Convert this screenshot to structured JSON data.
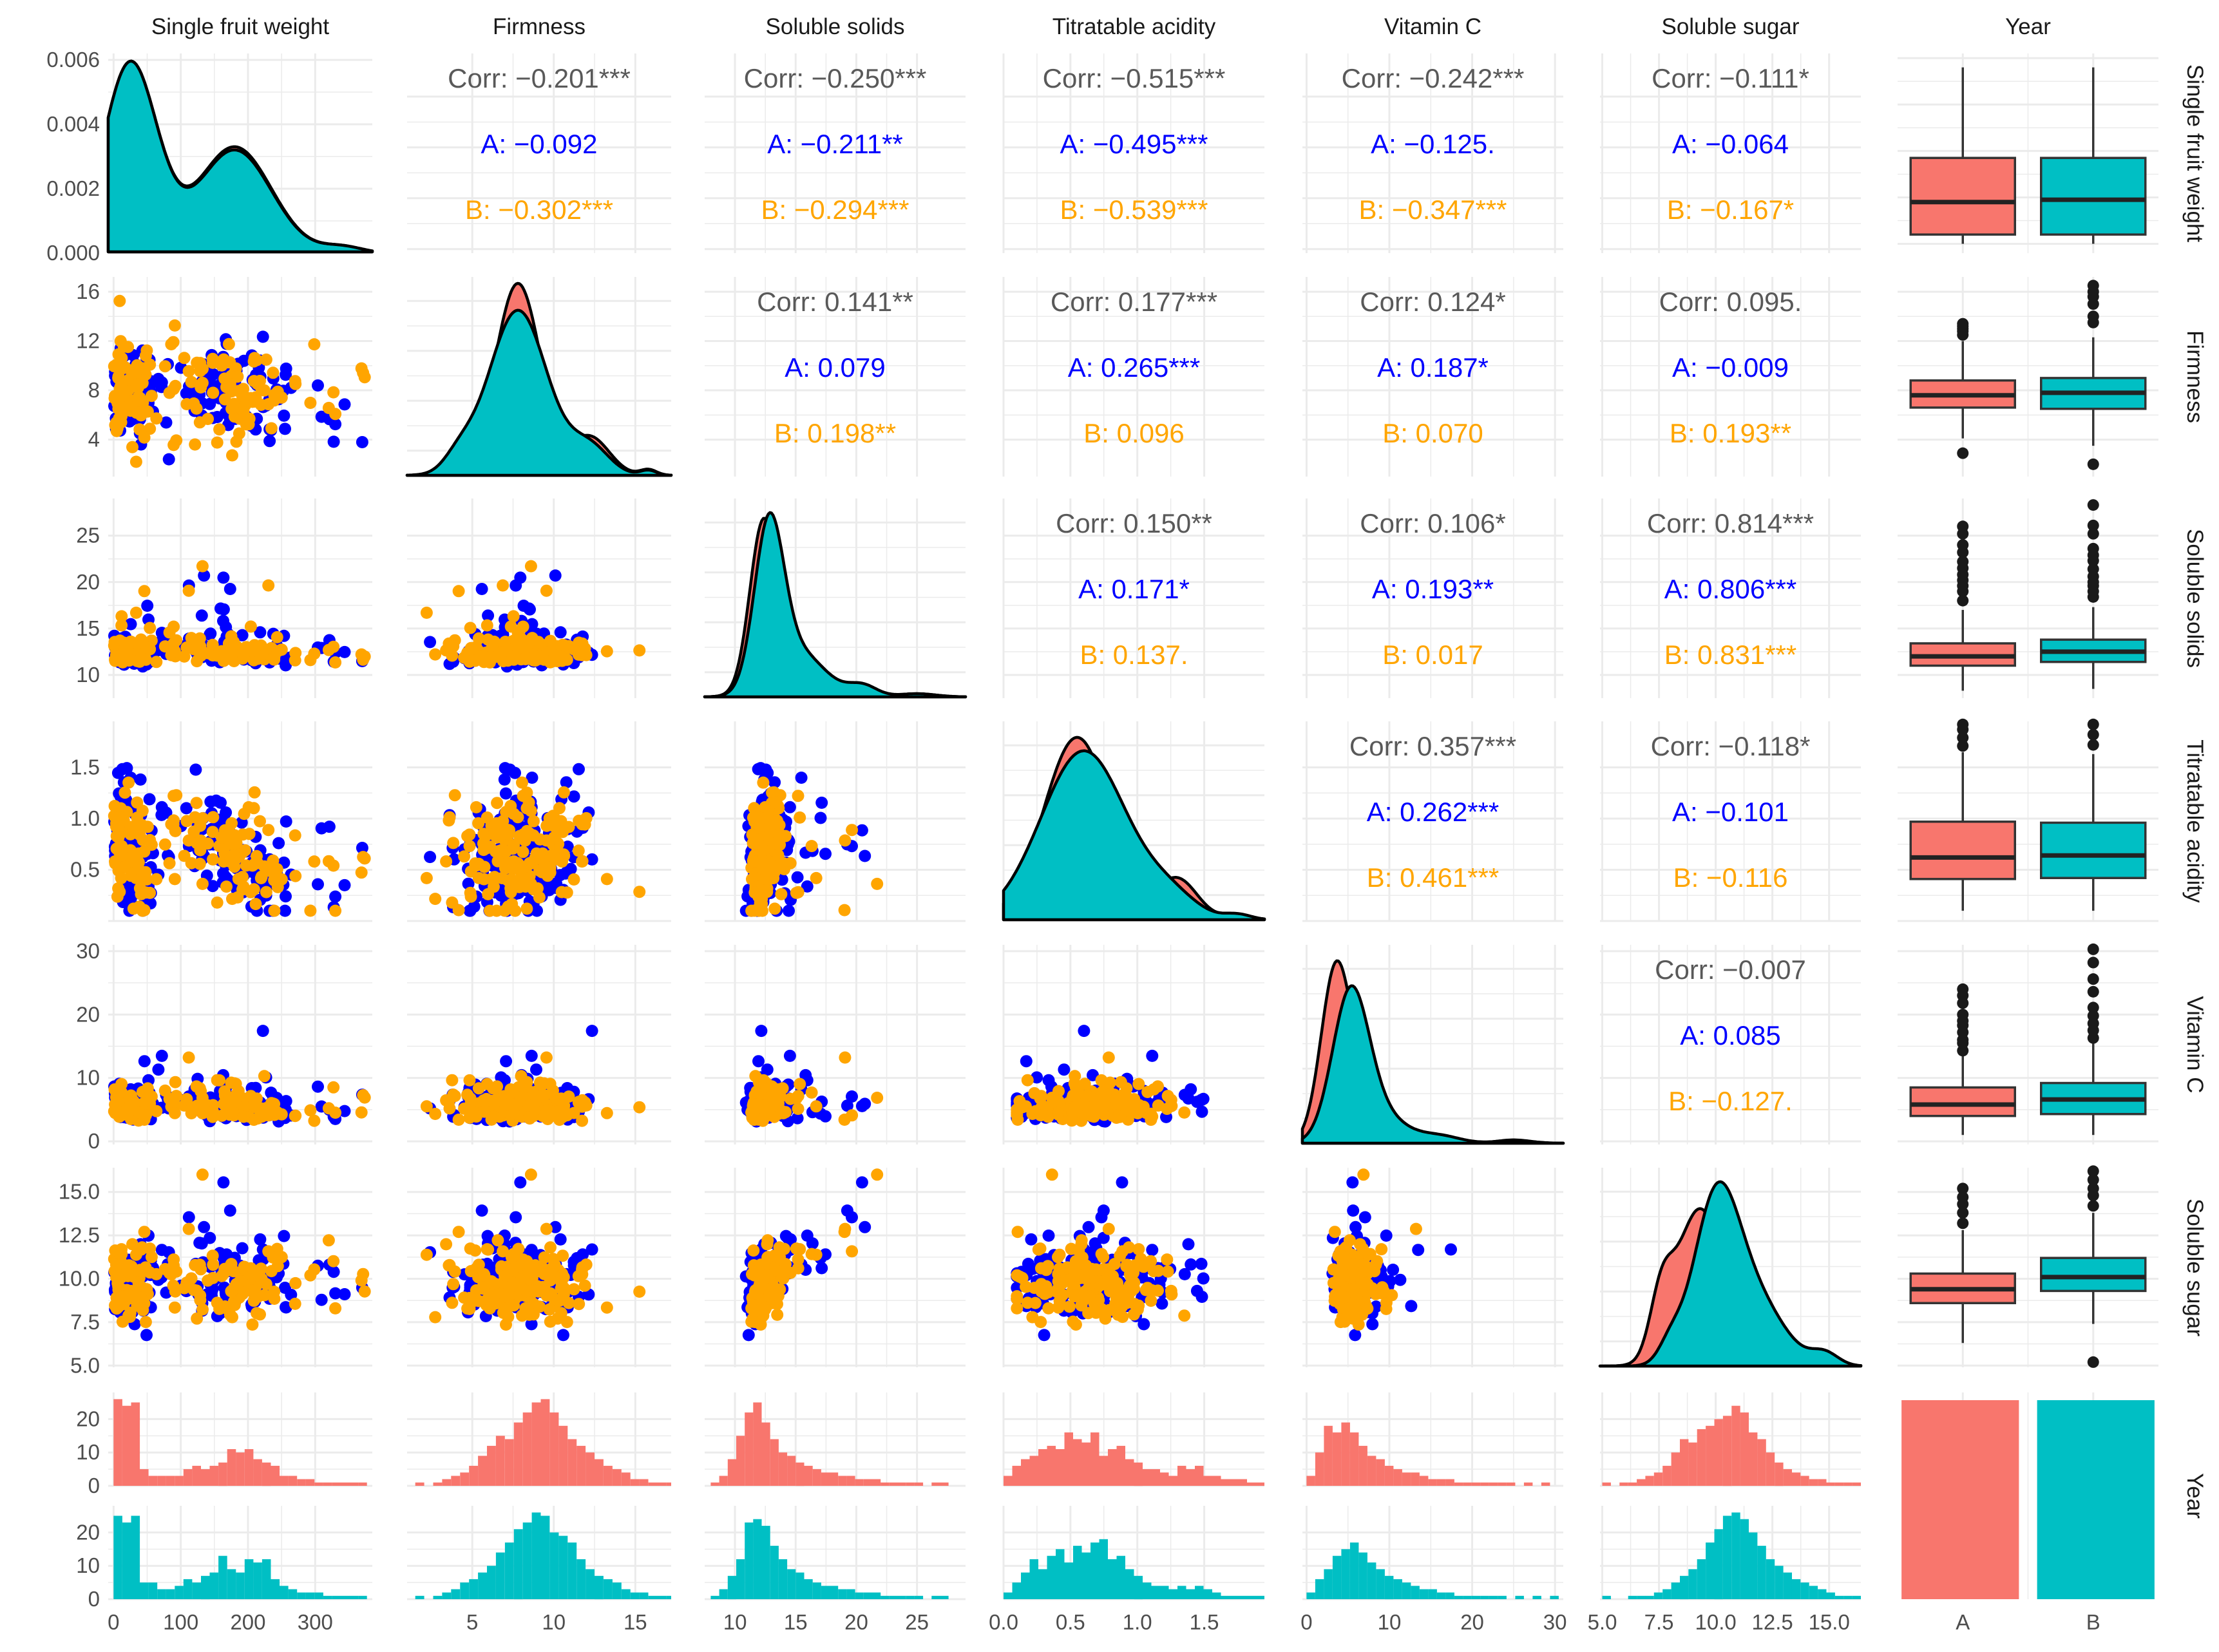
{
  "chart_data": {
    "type": "scatter-matrix",
    "title": "",
    "variables": [
      "Single fruit weight",
      "Firmness",
      "Soluble solids",
      "Titratable acidity",
      "Vitamin C",
      "Soluble sugar"
    ],
    "group_variable": "Year",
    "groups": [
      "A",
      "B"
    ],
    "colors": {
      "panel_bg": "#ffffff",
      "grid": "#ebebeb",
      "corr_text": "#595959",
      "A_text": "#0000ff",
      "B_text": "#ffa500",
      "A_fill": "#f8766d",
      "B_fill": "#00bfc4",
      "scatter_A": "#0000ff",
      "scatter_B": "#ffa500",
      "outline": "#000000"
    },
    "axes": [
      {
        "lim": [
          -8,
          385
        ],
        "ticks": [
          0,
          100,
          200,
          300
        ],
        "tick_labels": [
          "0",
          "100",
          "200",
          "300"
        ],
        "density_lim": [
          0,
          0.0062
        ],
        "density_ticks": [
          0,
          0.002,
          0.004,
          0.006
        ],
        "density_tick_labels": [
          "0.000",
          "0.002",
          "0.004",
          "0.006"
        ]
      },
      {
        "lim": [
          1.0,
          17.2
        ],
        "ticks": [
          4,
          8,
          12,
          16
        ],
        "tick_labels": [
          "4",
          "8",
          "12",
          "16"
        ],
        "x_ticks": [
          5,
          10,
          15
        ],
        "x_tick_labels": [
          "5",
          "10",
          "15"
        ]
      },
      {
        "lim": [
          7.5,
          29.0
        ],
        "ticks": [
          10,
          15,
          20,
          25
        ],
        "tick_labels": [
          "10",
          "15",
          "20",
          "25"
        ]
      },
      {
        "lim": [
          0.0,
          1.95
        ],
        "ticks": [
          0.5,
          1.0,
          1.5
        ],
        "tick_labels": [
          "0.5",
          "1.0",
          "1.5"
        ],
        "x_ticks": [
          0.0,
          0.5,
          1.0,
          1.5
        ],
        "x_tick_labels": [
          "0.0",
          "0.5",
          "1.0",
          "1.5"
        ]
      },
      {
        "lim": [
          -0.5,
          31.0
        ],
        "ticks": [
          0,
          10,
          20,
          30
        ],
        "tick_labels": [
          "0",
          "10",
          "20",
          "30"
        ]
      },
      {
        "lim": [
          4.9,
          16.4
        ],
        "ticks": [
          5.0,
          7.5,
          10.0,
          12.5,
          15.0
        ],
        "tick_labels": [
          "5.0",
          "7.5",
          "10.0",
          "12.5",
          "15.0"
        ]
      }
    ],
    "correlations": [
      {
        "i": 0,
        "j": 1,
        "corr": "Corr: −0.201***",
        "A": "A: −0.092",
        "B": "B: −0.302***"
      },
      {
        "i": 0,
        "j": 2,
        "corr": "Corr: −0.250***",
        "A": "A: −0.211**",
        "B": "B: −0.294***"
      },
      {
        "i": 0,
        "j": 3,
        "corr": "Corr: −0.515***",
        "A": "A: −0.495***",
        "B": "B: −0.539***"
      },
      {
        "i": 0,
        "j": 4,
        "corr": "Corr: −0.242***",
        "A": "A: −0.125.",
        "B": "B: −0.347***"
      },
      {
        "i": 0,
        "j": 5,
        "corr": "Corr: −0.111*",
        "A": "A: −0.064",
        "B": "B: −0.167*"
      },
      {
        "i": 1,
        "j": 2,
        "corr": "Corr: 0.141**",
        "A": "A: 0.079",
        "B": "B: 0.198**"
      },
      {
        "i": 1,
        "j": 3,
        "corr": "Corr: 0.177***",
        "A": "A: 0.265***",
        "B": "B: 0.096"
      },
      {
        "i": 1,
        "j": 4,
        "corr": "Corr: 0.124*",
        "A": "A: 0.187*",
        "B": "B: 0.070"
      },
      {
        "i": 1,
        "j": 5,
        "corr": "Corr: 0.095.",
        "A": "A: −0.009",
        "B": "B: 0.193**"
      },
      {
        "i": 2,
        "j": 3,
        "corr": "Corr: 0.150**",
        "A": "A: 0.171*",
        "B": "B: 0.137."
      },
      {
        "i": 2,
        "j": 4,
        "corr": "Corr: 0.106*",
        "A": "A: 0.193**",
        "B": "B: 0.017"
      },
      {
        "i": 2,
        "j": 5,
        "corr": "Corr: 0.814***",
        "A": "A: 0.806***",
        "B": "B: 0.831***"
      },
      {
        "i": 3,
        "j": 4,
        "corr": "Corr: 0.357***",
        "A": "A: 0.262***",
        "B": "B: 0.461***"
      },
      {
        "i": 3,
        "j": 5,
        "corr": "Corr: −0.118*",
        "A": "A: −0.101",
        "B": "B: −0.116"
      },
      {
        "i": 4,
        "j": 5,
        "corr": "Corr: −0.007",
        "A": "A: 0.085",
        "B": "B: −0.127."
      }
    ],
    "densities": [
      {
        "var": "Single fruit weight",
        "A": {
          "modes": [
            [
              25,
              40,
              0.0059
            ],
            [
              180,
              55,
              0.0033
            ],
            [
              340,
              30,
              0.0002
            ]
          ]
        },
        "B": {
          "modes": [
            [
              25,
              40,
              0.0059
            ],
            [
              180,
              55,
              0.0032
            ],
            [
              340,
              30,
              0.0002
            ]
          ]
        }
      },
      {
        "var": "Firmness",
        "A": {
          "modes": [
            [
              7.8,
              1.4,
              1.0
            ],
            [
              4.2,
              0.8,
              0.12
            ],
            [
              12.2,
              1.2,
              0.2
            ],
            [
              15.8,
              0.5,
              0.03
            ]
          ],
          "peak_frac": 1.0
        },
        "B": {
          "modes": [
            [
              7.8,
              1.8,
              1.0
            ],
            [
              4.2,
              0.9,
              0.1
            ],
            [
              12.2,
              1.2,
              0.17
            ],
            [
              15.8,
              0.5,
              0.03
            ]
          ],
          "peak_frac": 0.86
        }
      },
      {
        "var": "Soluble solids",
        "A": {
          "modes": [
            [
              12.3,
              1.1,
              1.0
            ],
            [
              14.8,
              2.0,
              0.3
            ],
            [
              20.5,
              1.2,
              0.06
            ],
            [
              25,
              1.5,
              0.02
            ]
          ],
          "peak_frac": 0.93
        },
        "B": {
          "modes": [
            [
              12.8,
              1.2,
              1.0
            ],
            [
              15.2,
              2.2,
              0.28
            ],
            [
              20.5,
              1.2,
              0.07
            ],
            [
              25,
              1.5,
              0.02
            ]
          ],
          "peak_frac": 0.96
        }
      },
      {
        "var": "Titratable acidity",
        "A": {
          "modes": [
            [
              0.55,
              0.25,
              1.0
            ],
            [
              1.3,
              0.15,
              0.22
            ],
            [
              1.75,
              0.1,
              0.03
            ]
          ],
          "peak_frac": 0.95
        },
        "B": {
          "modes": [
            [
              0.6,
              0.32,
              1.0
            ],
            [
              1.25,
              0.2,
              0.12
            ],
            [
              1.75,
              0.1,
              0.03
            ]
          ],
          "peak_frac": 0.88
        }
      },
      {
        "var": "Vitamin C",
        "A": {
          "modes": [
            [
              3.5,
              1.8,
              1.0
            ],
            [
              7,
              2.5,
              0.3
            ],
            [
              15,
              2.0,
              0.05
            ],
            [
              25,
              2,
              0.02
            ]
          ],
          "peak_frac": 0.95
        },
        "B": {
          "modes": [
            [
              5.3,
              2.2,
              1.0
            ],
            [
              9,
              3,
              0.18
            ],
            [
              16,
              2.5,
              0.05
            ],
            [
              25,
              2,
              0.02
            ]
          ],
          "peak_frac": 0.82
        }
      },
      {
        "var": "Soluble sugar",
        "A": {
          "modes": [
            [
              9.2,
              1.0,
              1.0
            ],
            [
              7.6,
              0.5,
              0.4
            ],
            [
              11.5,
              1.5,
              0.35
            ],
            [
              14.5,
              0.6,
              0.06
            ]
          ],
          "peak_frac": 0.82
        },
        "B": {
          "modes": [
            [
              10.0,
              1.0,
              1.0
            ],
            [
              8.0,
              0.5,
              0.12
            ],
            [
              11.7,
              1.3,
              0.42
            ],
            [
              14.8,
              0.6,
              0.08
            ]
          ],
          "peak_frac": 0.96
        }
      }
    ],
    "boxplots": [
      {
        "var": "Single fruit weight",
        "A": {
          "lower": 0,
          "q1": 20,
          "median": 90,
          "q3": 185,
          "upper": 380,
          "outliers": []
        },
        "B": {
          "lower": 0,
          "q1": 20,
          "median": 95,
          "q3": 185,
          "upper": 380,
          "outliers": []
        }
      },
      {
        "var": "Firmness",
        "A": {
          "lower": 4.1,
          "q1": 6.6,
          "median": 7.6,
          "q3": 8.8,
          "upper": 12.0,
          "outliers": [
            2.9,
            12.5,
            12.8,
            13.0,
            13.2,
            13.4
          ]
        },
        "B": {
          "lower": 3.5,
          "q1": 6.5,
          "median": 7.8,
          "q3": 9.0,
          "upper": 12.3,
          "outliers": [
            2.0,
            13.5,
            14.0,
            15.0,
            15.6,
            16.0,
            16.5
          ]
        }
      },
      {
        "var": "Soluble solids",
        "A": {
          "lower": 8.3,
          "q1": 11.0,
          "median": 12.0,
          "q3": 13.4,
          "upper": 17.0,
          "outliers": [
            18.0,
            19.0,
            19.6,
            20.2,
            20.8,
            21.5,
            22.2,
            23.2,
            24.0,
            25.2,
            26.0
          ]
        },
        "B": {
          "lower": 8.5,
          "q1": 11.4,
          "median": 12.5,
          "q3": 13.8,
          "upper": 17.3,
          "outliers": [
            18.4,
            19.0,
            19.6,
            20.0,
            20.6,
            21.4,
            22.3,
            22.9,
            23.6,
            25.2,
            26.1,
            28.3
          ]
        }
      },
      {
        "var": "Titratable acidity",
        "A": {
          "lower": 0.1,
          "q1": 0.41,
          "median": 0.62,
          "q3": 0.97,
          "upper": 1.65,
          "outliers": [
            1.71,
            1.79,
            1.87,
            1.92
          ]
        },
        "B": {
          "lower": 0.1,
          "q1": 0.42,
          "median": 0.64,
          "q3": 0.96,
          "upper": 1.63,
          "outliers": [
            1.72,
            1.82,
            1.92
          ]
        }
      },
      {
        "var": "Vitamin C",
        "A": {
          "lower": 1.0,
          "q1": 4.0,
          "median": 5.8,
          "q3": 8.5,
          "upper": 13.5,
          "outliers": [
            14.3,
            15.5,
            16.0,
            17.2,
            18.3,
            19.0,
            20.0,
            21.8,
            23.0,
            24.0
          ]
        },
        "B": {
          "lower": 1.0,
          "q1": 4.3,
          "median": 6.6,
          "q3": 9.2,
          "upper": 15.5,
          "outliers": [
            16.3,
            17.5,
            18.6,
            19.8,
            21.1,
            23.6,
            25.6,
            28.2,
            30.3
          ]
        }
      },
      {
        "var": "Soluble sugar",
        "A": {
          "lower": 6.3,
          "q1": 8.6,
          "median": 9.4,
          "q3": 10.3,
          "upper": 12.8,
          "outliers": [
            13.2,
            13.8,
            14.3,
            14.7,
            15.2
          ]
        },
        "B": {
          "lower": 7.4,
          "q1": 9.3,
          "median": 10.1,
          "q3": 11.2,
          "upper": 13.8,
          "outliers": [
            5.2,
            14.2,
            14.8,
            15.2,
            15.7,
            16.2
          ]
        }
      }
    ],
    "year_bar": {
      "categories": [
        "A",
        "B"
      ],
      "values": [
        1,
        1
      ]
    },
    "histograms": [
      {
        "var": "Single fruit weight",
        "bin_start": 0,
        "bin_width": 13,
        "A": [
          26,
          24,
          25,
          5,
          3,
          3,
          3,
          3,
          5,
          6,
          5,
          6,
          7,
          11,
          10,
          11,
          8,
          7,
          6,
          3,
          3,
          2,
          2,
          1,
          1,
          1,
          1,
          1,
          1
        ],
        "B": [
          25,
          23,
          25,
          5,
          5,
          3,
          3,
          4,
          6,
          5,
          7,
          8,
          13,
          9,
          8,
          12,
          11,
          12,
          6,
          4,
          3,
          2,
          2,
          2,
          1,
          1,
          1,
          1,
          1
        ]
      },
      {
        "var": "Firmness",
        "bin_start": 1.5,
        "bin_width": 0.55,
        "A": [
          1,
          0,
          1,
          2,
          3,
          4,
          6,
          9,
          12,
          15,
          14,
          19,
          22,
          25,
          26,
          22,
          18,
          14,
          12,
          10,
          8,
          6,
          5,
          4,
          2,
          2,
          1,
          1,
          1
        ],
        "B": [
          1,
          0,
          1,
          2,
          3,
          5,
          6,
          8,
          10,
          14,
          17,
          21,
          23,
          26,
          25,
          20,
          19,
          17,
          12,
          9,
          7,
          6,
          5,
          3,
          2,
          2,
          1,
          1,
          1
        ]
      },
      {
        "var": "Soluble solids",
        "bin_start": 8.0,
        "bin_width": 0.7,
        "A": [
          1,
          3,
          8,
          15,
          22,
          25,
          19,
          14,
          10,
          9,
          7,
          6,
          5,
          4,
          4,
          3,
          3,
          2,
          2,
          2,
          1,
          1,
          1,
          1,
          1,
          0,
          1,
          1,
          0
        ],
        "B": [
          1,
          3,
          7,
          12,
          23,
          24,
          22,
          16,
          12,
          9,
          8,
          6,
          5,
          4,
          4,
          3,
          3,
          2,
          2,
          2,
          1,
          1,
          1,
          1,
          1,
          0,
          1,
          1,
          0
        ]
      },
      {
        "var": "Titratable acidity",
        "bin_start": 0.0,
        "bin_width": 0.065,
        "A": [
          3,
          6,
          8,
          9,
          11,
          12,
          11,
          16,
          14,
          13,
          16,
          9,
          11,
          12,
          8,
          7,
          5,
          5,
          4,
          3,
          6,
          5,
          6,
          3,
          3,
          2,
          2,
          2,
          1,
          1
        ],
        "B": [
          2,
          5,
          8,
          12,
          9,
          13,
          15,
          11,
          16,
          14,
          17,
          18,
          12,
          13,
          9,
          7,
          5,
          4,
          4,
          3,
          4,
          3,
          4,
          3,
          2,
          1,
          1,
          1,
          1,
          1
        ]
      },
      {
        "var": "Vitamin C",
        "bin_start": 0.0,
        "bin_width": 1.05,
        "A": [
          3,
          10,
          18,
          16,
          19,
          16,
          12,
          9,
          8,
          6,
          5,
          4,
          4,
          3,
          2,
          2,
          2,
          1,
          1,
          1,
          1,
          1,
          1,
          1,
          0,
          1,
          0,
          1,
          0
        ],
        "B": [
          2,
          6,
          9,
          13,
          15,
          17,
          14,
          11,
          9,
          7,
          6,
          5,
          4,
          3,
          3,
          2,
          2,
          1,
          1,
          1,
          1,
          1,
          1,
          0,
          1,
          0,
          1,
          0,
          1
        ]
      },
      {
        "var": "Soluble sugar",
        "bin_start": 5.0,
        "bin_width": 0.38,
        "A": [
          1,
          0,
          1,
          1,
          2,
          3,
          4,
          6,
          10,
          14,
          13,
          17,
          18,
          20,
          21,
          24,
          22,
          16,
          14,
          10,
          7,
          5,
          4,
          3,
          2,
          2,
          1,
          1,
          1,
          1
        ],
        "B": [
          1,
          0,
          0,
          1,
          1,
          1,
          2,
          3,
          5,
          7,
          9,
          12,
          17,
          21,
          25,
          26,
          24,
          20,
          16,
          12,
          10,
          8,
          6,
          5,
          4,
          3,
          2,
          1,
          1,
          1
        ]
      }
    ],
    "histogram_axis": {
      "lim": [
        0,
        28
      ],
      "ticks": [
        0,
        10,
        20
      ],
      "tick_labels": [
        "0",
        "10",
        "20"
      ]
    },
    "year_axis": {
      "tick_labels": [
        "A",
        "B"
      ]
    }
  }
}
